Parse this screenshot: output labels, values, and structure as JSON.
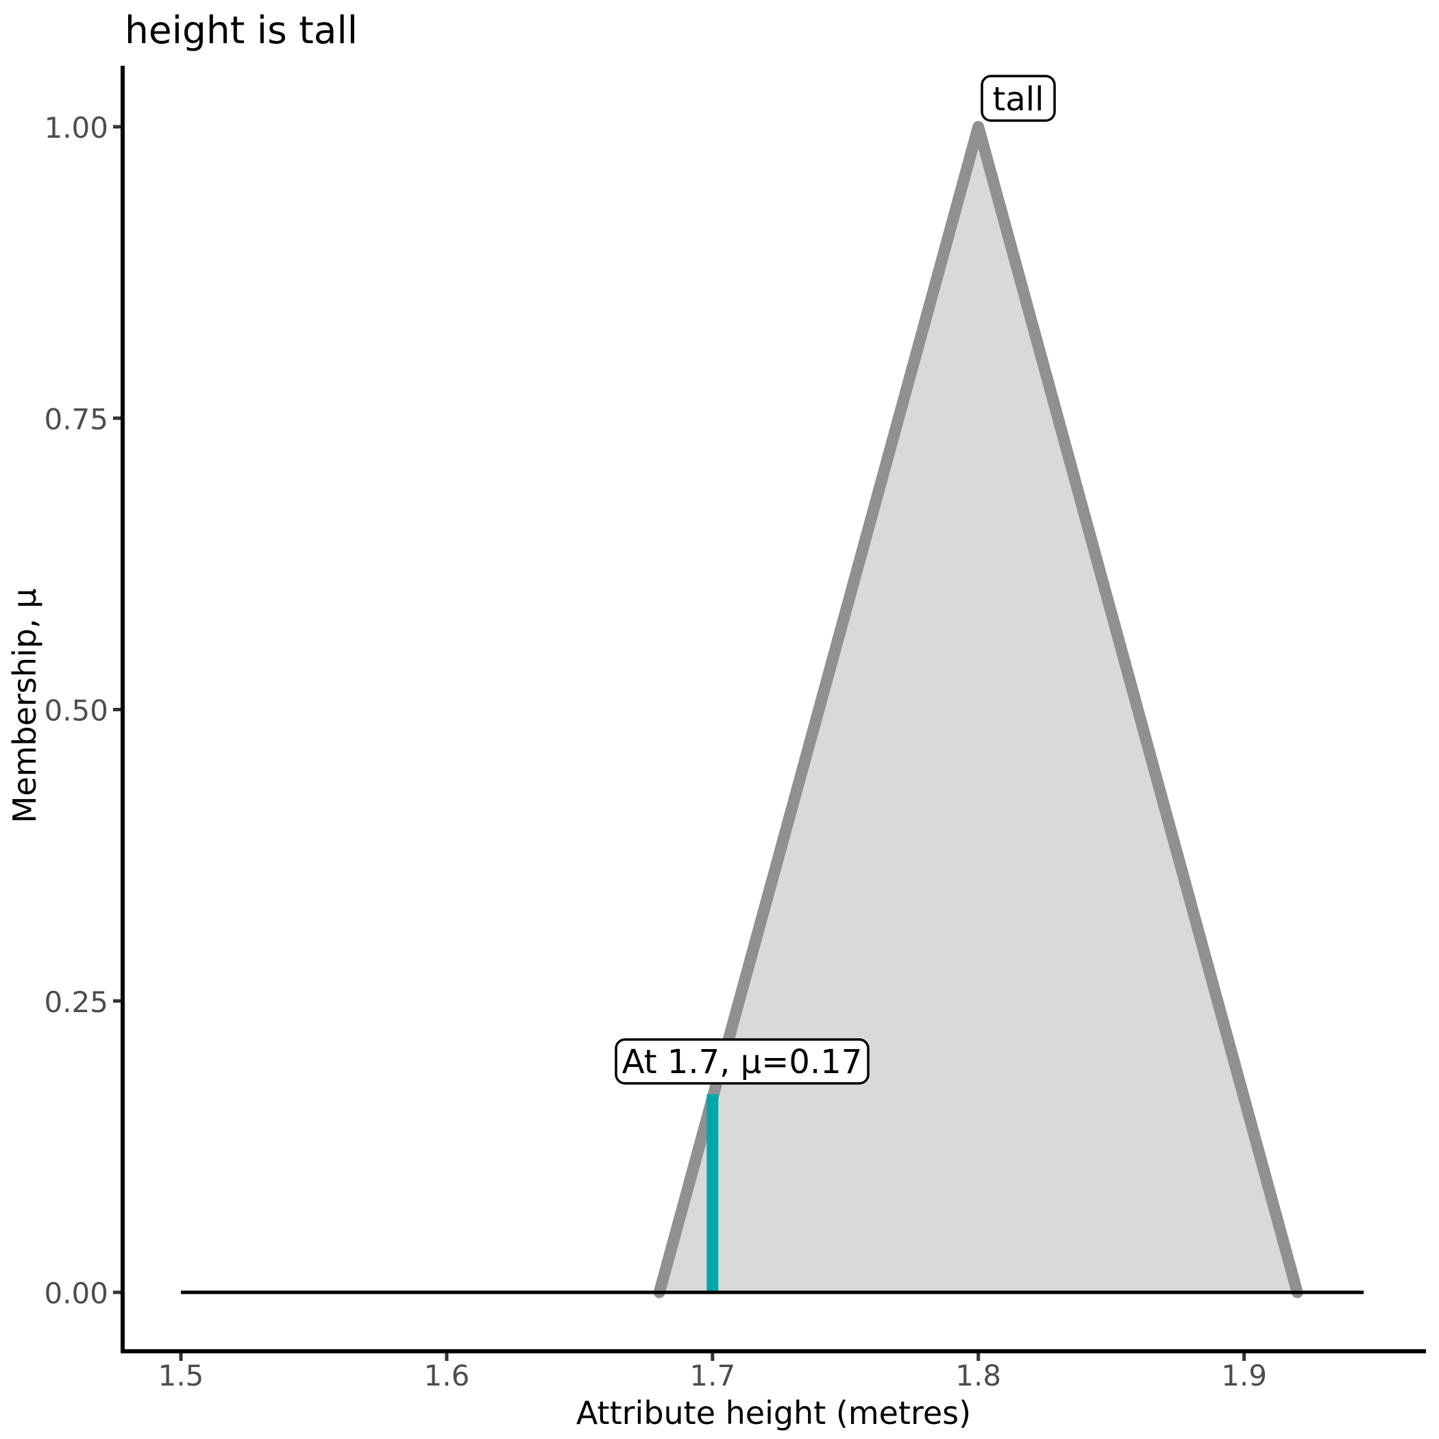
{
  "chart_data": {
    "type": "area",
    "title": "height is tall",
    "xlabel": "Attribute height (metres)",
    "ylabel": "Membership, μ",
    "x_ticks": {
      "values": [
        1.5,
        1.6,
        1.7,
        1.8,
        1.9
      ],
      "labels": [
        "1.5",
        "1.6",
        "1.7",
        "1.8",
        "1.9"
      ]
    },
    "y_ticks": {
      "values": [
        0,
        0.25,
        0.5,
        0.75,
        1.0
      ],
      "labels": [
        "0.00",
        "0.25",
        "0.50",
        "0.75",
        "1.00"
      ]
    },
    "xlim": [
      1.478,
      1.968
    ],
    "ylim": [
      -0.05,
      1.05
    ],
    "grid": "off",
    "legend": "none",
    "fuzzy_set": {
      "name": "tall",
      "shape": "triangular",
      "label": "tall",
      "x": [
        1.68,
        1.8,
        1.92
      ],
      "mu": [
        0,
        1,
        0
      ]
    },
    "baseline": {
      "x_start": 1.5,
      "x_end": 1.945,
      "mu": 0
    },
    "highlight": {
      "x": 1.7,
      "mu": 0.17,
      "label": "At 1.7, μ=0.17"
    },
    "colors": {
      "set_fill": "#D9D9D9",
      "set_stroke": "#909090",
      "highlight": "#00A7AA",
      "baseline": "#000000",
      "spine": "#000000",
      "tick_mark": "#333333",
      "tick_label": "#4D4D4D",
      "annotation_bg": "#FFFFFF",
      "annotation_border": "#000000",
      "text": "#000000"
    }
  }
}
